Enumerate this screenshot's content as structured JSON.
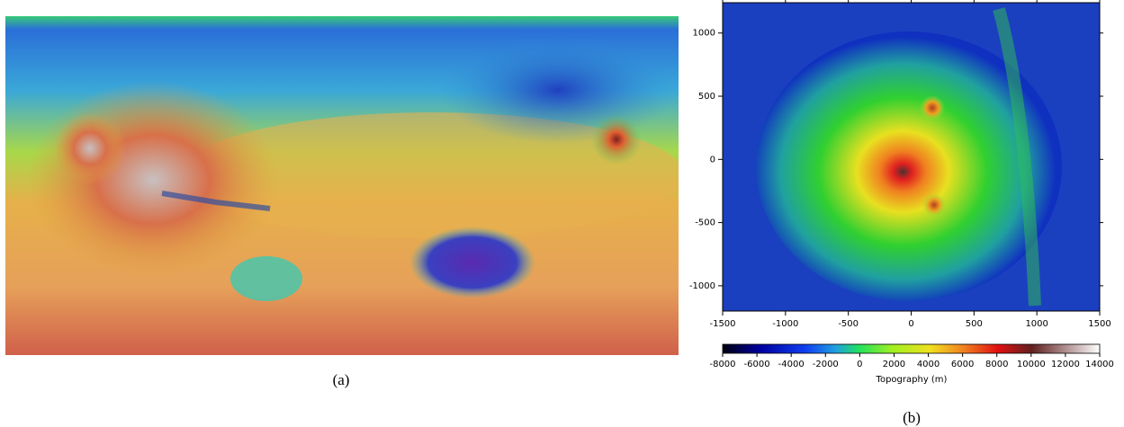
{
  "panels": [
    {
      "label": "(a)"
    },
    {
      "label": "(b)",
      "xlim": [
        -1500,
        1500
      ],
      "xticks": [
        -1500,
        -1000,
        -500,
        0,
        500,
        1000,
        1500
      ],
      "ylim": [
        -1200,
        1240
      ],
      "yticks": [
        -1000,
        -500,
        0,
        500,
        1000
      ],
      "colorbar": {
        "lim": [
          -8000,
          14000
        ],
        "ticks": [
          -8000,
          -6000,
          -4000,
          -2000,
          0,
          2000,
          4000,
          6000,
          8000,
          10000,
          12000,
          14000
        ],
        "label": "Topography (m)"
      }
    }
  ]
}
